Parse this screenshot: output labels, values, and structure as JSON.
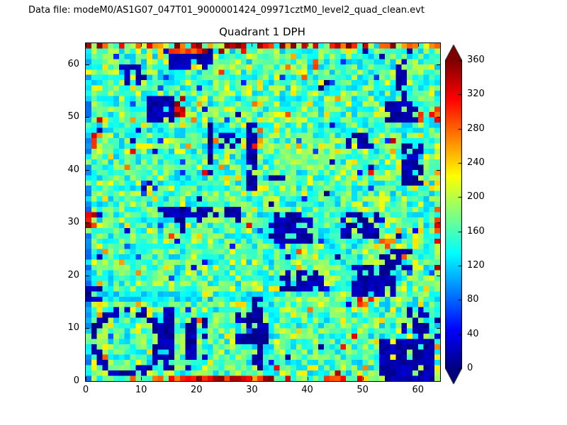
{
  "header": {
    "data_file_label": "Data file: modeM0/AS1G07_047T01_9000001424_09971cztM0_level2_quad_clean.evt"
  },
  "colors": {
    "frame": "#000000",
    "background": "#ffffff"
  },
  "chart_data": {
    "type": "heatmap",
    "title": "Quadrant 1 DPH",
    "xlabel": "",
    "ylabel": "",
    "grid_size": [
      64,
      64
    ],
    "x_range": [
      0,
      64
    ],
    "y_range": [
      0,
      64
    ],
    "xticks": [
      0,
      10,
      20,
      30,
      40,
      50,
      60
    ],
    "yticks": [
      0,
      10,
      20,
      30,
      40,
      50,
      60
    ],
    "colormap": "jet",
    "grid": false,
    "legend": "none",
    "colorbar": {
      "position": "right",
      "vmin": 0,
      "vmax": 360,
      "ticks": [
        0,
        40,
        80,
        120,
        160,
        200,
        240,
        280,
        320,
        360
      ],
      "extend": "both"
    },
    "seed": 987654321,
    "background_noise": {
      "green_range": [
        152,
        204
      ],
      "cyan_range": [
        112,
        154
      ],
      "yellow_range": [
        200,
        242
      ],
      "hot_range": [
        250,
        345
      ],
      "dark_range": [
        0,
        85
      ],
      "weights": [
        0.5,
        0.32,
        0.1,
        0.015,
        0.02,
        0.145
      ],
      "teal_range": [
        135,
        160
      ]
    },
    "cool_regions": [
      {
        "type": "hline",
        "y": 15,
        "x1": 0,
        "x2": 31,
        "h": 2,
        "p": 0.75,
        "v": [
          105,
          145
        ]
      },
      {
        "type": "hline",
        "y": 47,
        "x1": 0,
        "x2": 63,
        "h": 2,
        "p": 0.45,
        "v": [
          115,
          150
        ]
      },
      {
        "type": "vline",
        "x": 32,
        "y1": 0,
        "y2": 31,
        "w": 2,
        "p": 0.55,
        "v": [
          105,
          145
        ]
      },
      {
        "type": "vline",
        "x": 16,
        "y1": 32,
        "y2": 63,
        "w": 1,
        "p": 0.3,
        "v": [
          115,
          150
        ]
      },
      {
        "type": "hline",
        "y": 31,
        "x1": 32,
        "x2": 63,
        "h": 1,
        "p": 0.35,
        "v": [
          115,
          150
        ]
      },
      {
        "type": "vline",
        "x": 48,
        "y1": 32,
        "y2": 63,
        "w": 1,
        "p": 0.3,
        "v": [
          115,
          150
        ]
      },
      {
        "type": "vline",
        "x": 0,
        "y1": 0,
        "y2": 63,
        "w": 1,
        "p": 0.8,
        "v": [
          80,
          140
        ]
      }
    ],
    "dark_blobs": [
      {
        "type": "rect",
        "x": 15,
        "y": 59,
        "w": 8,
        "h": 4,
        "p": 0.85,
        "v": [
          0,
          30
        ]
      },
      {
        "type": "rect",
        "x": 6,
        "y": 57,
        "w": 5,
        "h": 3,
        "p": 0.6,
        "v": [
          0,
          30
        ]
      },
      {
        "type": "rect",
        "x": 11,
        "y": 49,
        "w": 5,
        "h": 5,
        "p": 0.8,
        "v": [
          0,
          30
        ]
      },
      {
        "type": "rect",
        "x": 54,
        "y": 49,
        "w": 6,
        "h": 4,
        "p": 0.7,
        "v": [
          0,
          30
        ]
      },
      {
        "type": "rect",
        "x": 56,
        "y": 53,
        "w": 2,
        "h": 8,
        "p": 0.7,
        "v": [
          0,
          30
        ]
      },
      {
        "type": "vline",
        "x": 22,
        "y1": 38,
        "y2": 48,
        "w": 1,
        "p": 0.8,
        "v": [
          0,
          30
        ]
      },
      {
        "type": "vline",
        "x": 29,
        "y1": 36,
        "y2": 48,
        "w": 2,
        "p": 0.75,
        "v": [
          0,
          30
        ]
      },
      {
        "type": "rect",
        "x": 24,
        "y": 44,
        "w": 4,
        "h": 3,
        "p": 0.7,
        "v": [
          0,
          30
        ]
      },
      {
        "type": "hline",
        "y": 31,
        "x1": 13,
        "x2": 27,
        "h": 2,
        "p": 0.7,
        "v": [
          0,
          30
        ]
      },
      {
        "type": "rect",
        "x": 17,
        "y": 28,
        "w": 4,
        "h": 3,
        "p": 0.5,
        "v": [
          0,
          30
        ]
      },
      {
        "type": "rect",
        "x": 33,
        "y": 26,
        "w": 8,
        "h": 6,
        "p": 0.82,
        "v": [
          0,
          30
        ]
      },
      {
        "type": "rect",
        "x": 46,
        "y": 27,
        "w": 7,
        "h": 5,
        "p": 0.55,
        "v": [
          0,
          30
        ]
      },
      {
        "type": "rect",
        "x": 48,
        "y": 16,
        "w": 8,
        "h": 6,
        "p": 0.8,
        "v": [
          0,
          30
        ]
      },
      {
        "type": "rect",
        "x": 53,
        "y": 21,
        "w": 6,
        "h": 4,
        "p": 0.6,
        "v": [
          0,
          30
        ]
      },
      {
        "type": "rect",
        "x": 35,
        "y": 17,
        "w": 8,
        "h": 4,
        "p": 0.7,
        "v": [
          0,
          30
        ]
      },
      {
        "type": "vline",
        "x": 30,
        "y1": 2,
        "y2": 15,
        "w": 2,
        "p": 0.8,
        "v": [
          0,
          30
        ]
      },
      {
        "type": "rect",
        "x": 27,
        "y": 7,
        "w": 6,
        "h": 6,
        "p": 0.6,
        "v": [
          0,
          30
        ]
      },
      {
        "type": "ring",
        "cx": 7,
        "cy": 7,
        "r": 6,
        "t": 1.8,
        "p": 0.75,
        "v": [
          0,
          30
        ]
      },
      {
        "type": "vline",
        "x": 14,
        "y1": 2,
        "y2": 13,
        "w": 2,
        "p": 0.7,
        "v": [
          0,
          30
        ]
      },
      {
        "type": "vline",
        "x": 18,
        "y1": 2,
        "y2": 12,
        "w": 2,
        "p": 0.6,
        "v": [
          0,
          30
        ]
      },
      {
        "type": "vline",
        "x": 21,
        "y1": 3,
        "y2": 11,
        "w": 1,
        "p": 0.5,
        "v": [
          0,
          30
        ]
      },
      {
        "type": "rect",
        "x": 53,
        "y": 0,
        "w": 10,
        "h": 8,
        "p": 0.85,
        "v": [
          0,
          30
        ]
      },
      {
        "type": "rect",
        "x": 57,
        "y": 8,
        "w": 5,
        "h": 6,
        "p": 0.6,
        "v": [
          0,
          30
        ]
      },
      {
        "type": "rect",
        "x": 57,
        "y": 37,
        "w": 4,
        "h": 8,
        "p": 0.7,
        "v": [
          0,
          30
        ]
      },
      {
        "type": "rect",
        "x": 47,
        "y": 44,
        "w": 5,
        "h": 3,
        "p": 0.7,
        "v": [
          0,
          30
        ]
      },
      {
        "type": "rect",
        "x": 9,
        "y": 36,
        "w": 3,
        "h": 2,
        "p": 0.4,
        "v": [
          0,
          30
        ]
      },
      {
        "type": "rect",
        "x": 0,
        "y": 15,
        "w": 3,
        "h": 3,
        "p": 0.6,
        "v": [
          0,
          30
        ]
      },
      {
        "type": "rect",
        "x": 42,
        "y": 55,
        "w": 2,
        "h": 2,
        "p": 0.4,
        "v": [
          0,
          30
        ]
      },
      {
        "type": "rect",
        "x": 33,
        "y": 37,
        "w": 3,
        "h": 2,
        "p": 0.4,
        "v": [
          0,
          30
        ]
      }
    ],
    "hot_regions": [
      {
        "type": "hline",
        "y": 63,
        "x1": 0,
        "x2": 63,
        "h": 1,
        "p": 0.65,
        "v": [
          250,
          370
        ]
      },
      {
        "type": "hline",
        "y": 62,
        "x1": 14,
        "x2": 30,
        "h": 1,
        "p": 0.3,
        "v": [
          250,
          360
        ]
      },
      {
        "type": "hline",
        "y": 0,
        "x1": 12,
        "x2": 34,
        "h": 1,
        "p": 0.8,
        "v": [
          255,
          370
        ]
      },
      {
        "type": "hline",
        "y": 0,
        "x1": 35,
        "x2": 52,
        "h": 1,
        "p": 0.35,
        "v": [
          250,
          360
        ]
      },
      {
        "type": "hline",
        "y": 0,
        "x1": 1,
        "x2": 11,
        "h": 1,
        "p": 0.2,
        "v": [
          250,
          340
        ]
      },
      {
        "type": "vline",
        "x": 63,
        "y1": 18,
        "y2": 55,
        "w": 1,
        "p": 0.28,
        "v": [
          250,
          360
        ]
      },
      {
        "type": "rect",
        "x": 16,
        "y": 50,
        "w": 2,
        "h": 3,
        "p": 0.8,
        "v": [
          300,
          370
        ]
      },
      {
        "type": "rect",
        "x": 30,
        "y": 44,
        "w": 2,
        "h": 4,
        "p": 0.5,
        "v": [
          260,
          340
        ]
      },
      {
        "type": "rect",
        "x": 0,
        "y": 29,
        "w": 2,
        "h": 3,
        "p": 0.7,
        "v": [
          290,
          365
        ]
      },
      {
        "type": "rect",
        "x": 49,
        "y": 14,
        "w": 3,
        "h": 2,
        "p": 0.5,
        "v": [
          255,
          330
        ]
      },
      {
        "type": "rect",
        "x": 60,
        "y": 49,
        "w": 4,
        "h": 2,
        "p": 0.5,
        "v": [
          255,
          340
        ]
      },
      {
        "type": "rect",
        "x": 1,
        "y": 44,
        "w": 2,
        "h": 3,
        "p": 0.45,
        "v": [
          255,
          340
        ]
      },
      {
        "type": "rect",
        "x": 37,
        "y": 31,
        "w": 3,
        "h": 1,
        "p": 0.6,
        "v": [
          255,
          340
        ]
      },
      {
        "type": "rect",
        "x": 53,
        "y": 25,
        "w": 3,
        "h": 2,
        "p": 0.5,
        "v": [
          255,
          340
        ]
      }
    ]
  }
}
